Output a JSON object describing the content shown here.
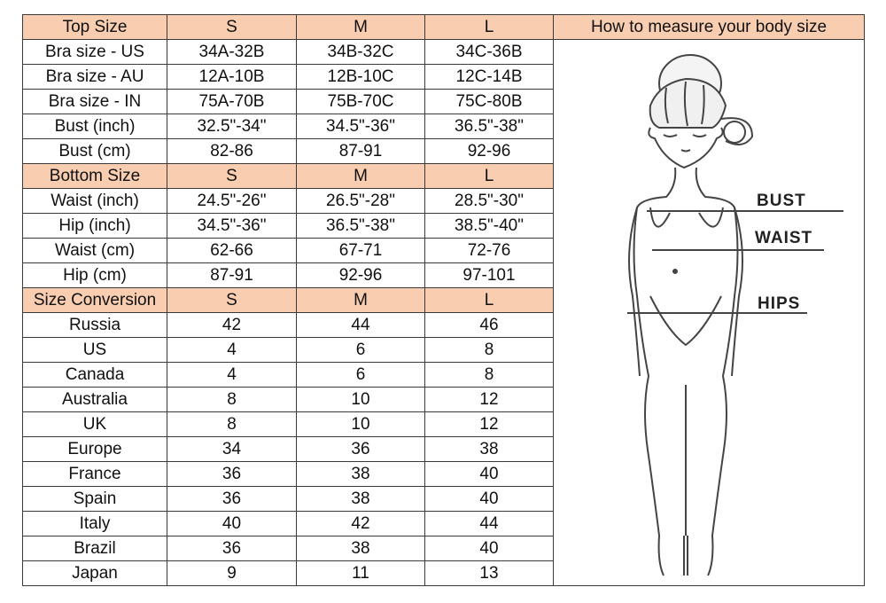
{
  "header_color": "#f8cdb0",
  "figure_title": "How to measure your body size",
  "figure_labels": {
    "bust": "BUST",
    "waist": "WAIST",
    "hips": "HIPS"
  },
  "rows": [
    {
      "header": true,
      "cells": [
        "Top Size",
        "S",
        "M",
        "L"
      ]
    },
    {
      "cells": [
        "Bra size - US",
        "34A-32B",
        "34B-32C",
        "34C-36B"
      ]
    },
    {
      "cells": [
        "Bra size - AU",
        "12A-10B",
        "12B-10C",
        "12C-14B"
      ]
    },
    {
      "cells": [
        "Bra size - IN",
        "75A-70B",
        "75B-70C",
        "75C-80B"
      ]
    },
    {
      "cells": [
        "Bust (inch)",
        "32.5\"-34\"",
        "34.5\"-36\"",
        "36.5\"-38\""
      ]
    },
    {
      "cells": [
        "Bust (cm)",
        "82-86",
        "87-91",
        "92-96"
      ]
    },
    {
      "header": true,
      "cells": [
        "Bottom Size",
        "S",
        "M",
        "L"
      ]
    },
    {
      "cells": [
        "Waist (inch)",
        "24.5\"-26\"",
        "26.5\"-28\"",
        "28.5\"-30\""
      ]
    },
    {
      "cells": [
        "Hip (inch)",
        "34.5\"-36\"",
        "36.5\"-38\"",
        "38.5\"-40\""
      ]
    },
    {
      "cells": [
        "Waist (cm)",
        "62-66",
        "67-71",
        "72-76"
      ]
    },
    {
      "cells": [
        "Hip (cm)",
        "87-91",
        "92-96",
        "97-101"
      ]
    },
    {
      "header": true,
      "cells": [
        "Size Conversion",
        "S",
        "M",
        "L"
      ]
    },
    {
      "cells": [
        "Russia",
        "42",
        "44",
        "46"
      ]
    },
    {
      "cells": [
        "US",
        "4",
        "6",
        "8"
      ]
    },
    {
      "cells": [
        "Canada",
        "4",
        "6",
        "8"
      ]
    },
    {
      "cells": [
        "Australia",
        "8",
        "10",
        "12"
      ]
    },
    {
      "cells": [
        "UK",
        "8",
        "10",
        "12"
      ]
    },
    {
      "cells": [
        "Europe",
        "34",
        "36",
        "38"
      ]
    },
    {
      "cells": [
        "France",
        "36",
        "38",
        "40"
      ]
    },
    {
      "cells": [
        "Spain",
        "36",
        "38",
        "40"
      ]
    },
    {
      "cells": [
        "Italy",
        "40",
        "42",
        "44"
      ]
    },
    {
      "cells": [
        "Brazil",
        "36",
        "38",
        "40"
      ]
    },
    {
      "cells": [
        "Japan",
        "9",
        "11",
        "13"
      ]
    }
  ]
}
